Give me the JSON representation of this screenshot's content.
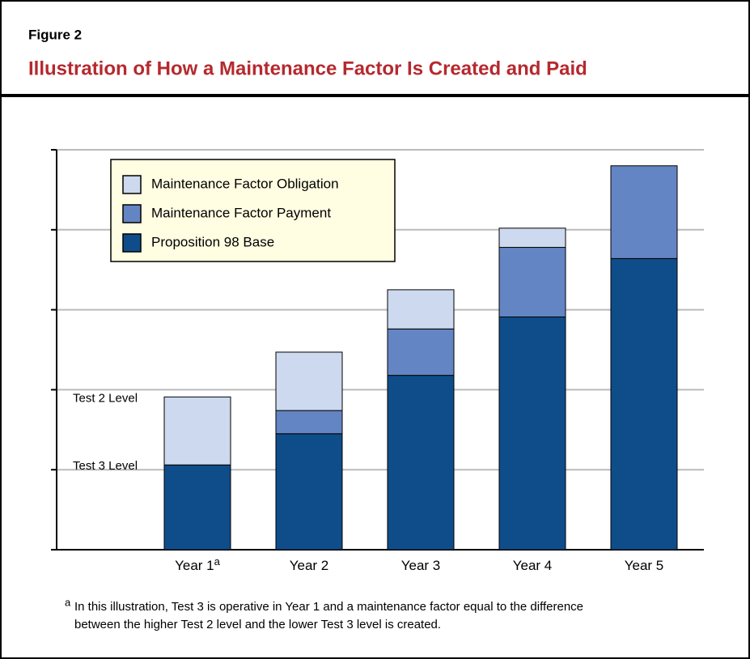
{
  "chart_data": {
    "type": "stacked_bar",
    "figure_label": "Figure 2",
    "title": "Illustration of How a Maintenance Factor Is Created and Paid",
    "categories": [
      "Year 1",
      "Year 2",
      "Year 3",
      "Year 4",
      "Year 5"
    ],
    "series": [
      {
        "name": "Proposition 98 Base",
        "color": "#0f4d8a",
        "values": [
          1.06,
          1.45,
          2.18,
          2.91,
          3.64
        ]
      },
      {
        "name": "Maintenance Factor Payment",
        "color": "#6485c3",
        "values": [
          0,
          0.29,
          0.58,
          0.87,
          1.16
        ]
      },
      {
        "name": "Maintenance Factor Obligation",
        "color": "#ccd9ef",
        "values": [
          0.85,
          0.73,
          0.49,
          0.24,
          0
        ]
      }
    ],
    "ylim": [
      0,
      5
    ],
    "yticks": [
      0,
      1,
      2,
      3,
      4,
      5
    ],
    "grid": true,
    "legend": "upper left",
    "annotations": [
      {
        "text": "Test 2 Level",
        "y": 1.91
      },
      {
        "text": "Test 3 Level",
        "y": 1.06
      }
    ],
    "footnote": {
      "marker": "a",
      "lines": [
        "In this illustration, Test 3 is operative in Year 1 and a maintenance factor equal to the difference",
        "between the higher Test 2 level and the lower Test 3 level is created."
      ]
    }
  }
}
